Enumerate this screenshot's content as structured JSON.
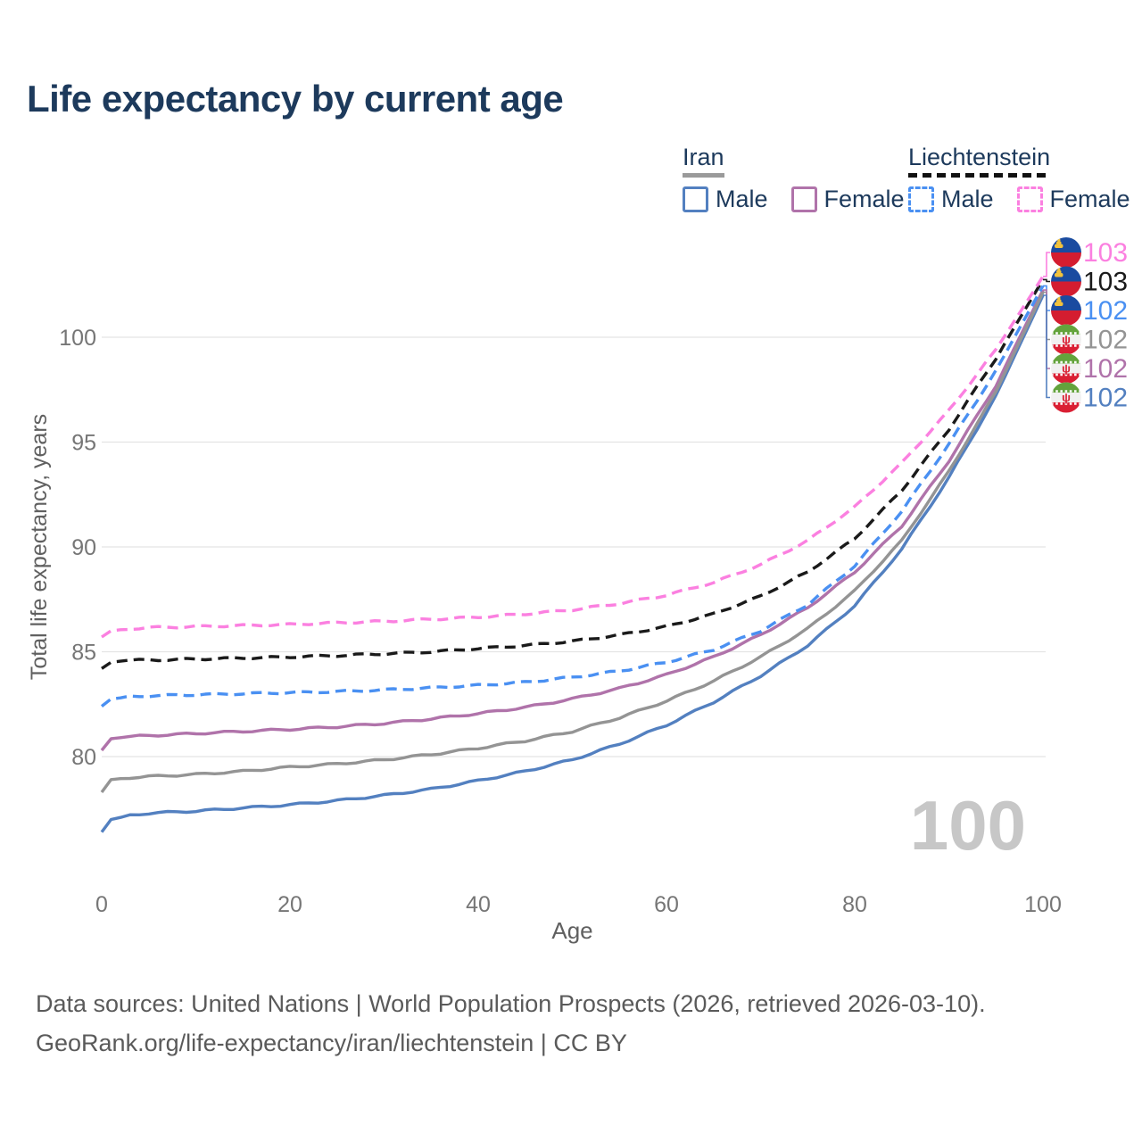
{
  "title": "Life expectancy by current age",
  "legend": {
    "groups": [
      {
        "name": "Iran",
        "line_style": "solid",
        "underline_color": "#9a9a9a",
        "items": [
          {
            "label": "Male",
            "color": "#5380c0",
            "dashed": false
          },
          {
            "label": "Female",
            "color": "#b073aa",
            "dashed": false
          }
        ]
      },
      {
        "name": "Liechtenstein",
        "line_style": "dashed",
        "underline_color": "#111111",
        "items": [
          {
            "label": "Male",
            "color": "#4a90f2",
            "dashed": true
          },
          {
            "label": "Female",
            "color": "#fb80e0",
            "dashed": true
          }
        ]
      }
    ]
  },
  "chart_data": {
    "type": "line",
    "title": "Life expectancy by current age",
    "xlabel": "Age",
    "ylabel": "Total life expectancy, years",
    "xlim": [
      0,
      100
    ],
    "ylim": [
      76,
      103.5
    ],
    "x_ticks": [
      0,
      20,
      40,
      60,
      80,
      100
    ],
    "y_ticks": [
      80,
      85,
      90,
      95,
      100
    ],
    "grid": true,
    "legend_position": "top-right",
    "age_cursor": "100",
    "x": [
      0,
      1,
      3,
      5,
      10,
      15,
      20,
      25,
      30,
      35,
      40,
      45,
      50,
      55,
      60,
      65,
      70,
      75,
      80,
      85,
      90,
      95,
      100
    ],
    "series": [
      {
        "name": "Liechtenstein Female",
        "country": "Liechtenstein",
        "sex": "Female",
        "color": "#fb80e0",
        "dashed": true,
        "flag": "li",
        "end_label": "103",
        "end_label_color": "#fb80e0",
        "values": [
          85.7,
          86.0,
          86.1,
          86.15,
          86.2,
          86.25,
          86.3,
          86.38,
          86.45,
          86.55,
          86.65,
          86.8,
          87.0,
          87.3,
          87.7,
          88.3,
          89.15,
          90.3,
          91.9,
          94.0,
          96.5,
          99.4,
          102.9
        ]
      },
      {
        "name": "Liechtenstein Both sexes",
        "country": "Liechtenstein",
        "sex": "Both",
        "color": "#1a1a1a",
        "dashed": true,
        "flag": "li",
        "end_label": "103",
        "end_label_color": "#1a1a1a",
        "values": [
          84.2,
          84.5,
          84.6,
          84.6,
          84.65,
          84.7,
          84.75,
          84.82,
          84.9,
          85.0,
          85.15,
          85.3,
          85.5,
          85.8,
          86.2,
          86.8,
          87.65,
          88.8,
          90.4,
          92.7,
          95.6,
          99.0,
          102.75
        ]
      },
      {
        "name": "Liechtenstein Male",
        "country": "Liechtenstein",
        "sex": "Male",
        "color": "#4a90f2",
        "dashed": true,
        "flag": "li",
        "end_label": "102",
        "end_label_color": "#4a90f2",
        "values": [
          82.4,
          82.75,
          82.85,
          82.9,
          82.95,
          83.0,
          83.05,
          83.1,
          83.18,
          83.28,
          83.4,
          83.55,
          83.78,
          84.08,
          84.5,
          85.1,
          86.0,
          87.25,
          89.1,
          91.7,
          94.9,
          98.4,
          102.45
        ]
      },
      {
        "name": "Iran Both sexes",
        "country": "Iran",
        "sex": "Both",
        "color": "#949494",
        "dashed": false,
        "flag": "ir",
        "end_label": "102",
        "end_label_color": "#949494",
        "values": [
          78.3,
          78.9,
          79.0,
          79.05,
          79.15,
          79.3,
          79.5,
          79.65,
          79.85,
          80.1,
          80.4,
          80.75,
          81.2,
          81.85,
          82.65,
          83.6,
          84.75,
          86.1,
          87.9,
          90.3,
          93.6,
          97.4,
          102.15
        ]
      },
      {
        "name": "Iran Female",
        "country": "Iran",
        "sex": "Female",
        "color": "#b073aa",
        "dashed": false,
        "flag": "ir",
        "end_label": "102",
        "end_label_color": "#b073aa",
        "values": [
          80.3,
          80.85,
          80.95,
          81.0,
          81.1,
          81.2,
          81.3,
          81.42,
          81.58,
          81.8,
          82.05,
          82.35,
          82.75,
          83.25,
          83.9,
          84.75,
          85.8,
          87.1,
          88.8,
          91.0,
          94.1,
          97.7,
          102.25
        ]
      },
      {
        "name": "Iran Male",
        "country": "Iran",
        "sex": "Male",
        "color": "#5380c0",
        "dashed": false,
        "flag": "ir",
        "end_label": "102",
        "end_label_color": "#5380c0",
        "values": [
          76.4,
          77.0,
          77.2,
          77.3,
          77.4,
          77.55,
          77.7,
          77.9,
          78.15,
          78.45,
          78.85,
          79.3,
          79.85,
          80.6,
          81.5,
          82.6,
          83.85,
          85.3,
          87.2,
          89.9,
          93.3,
          97.2,
          102.0
        ]
      }
    ]
  },
  "footer": {
    "line1": "Data sources: United Nations | World Population Prospects (2026, retrieved 2026-03-10).",
    "line2": "GeoRank.org/life-expectancy/iran/liechtenstein | CC BY"
  }
}
